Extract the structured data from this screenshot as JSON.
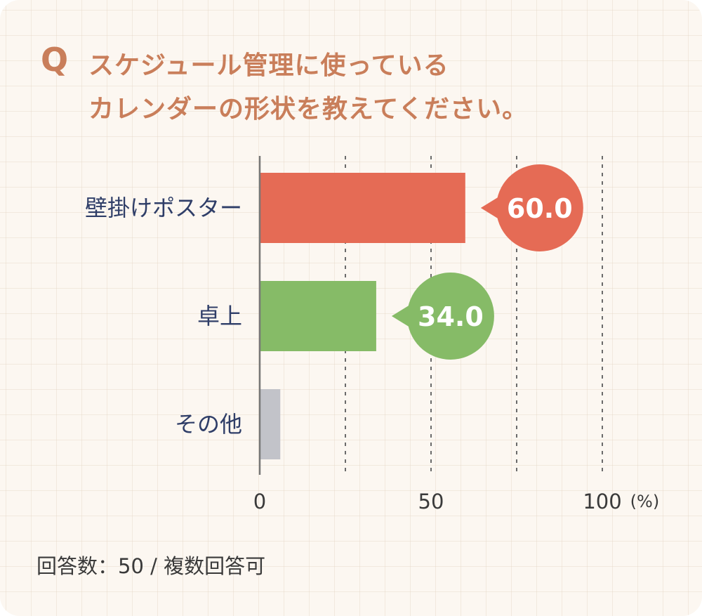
{
  "question": {
    "mark": "Q",
    "line1": "スケジュール管理に使っている",
    "line2": "カレンダーの形状を教えてください。"
  },
  "footnote": "回答数：50 / 複数回答可",
  "colors": {
    "accent": "#c97e5a",
    "background": "#fcf7f1",
    "bar_wall": "#e56b55",
    "bar_desk": "#86bb67",
    "bar_other": "#c2c3c9",
    "label_text": "#2f3e68"
  },
  "chart_data": {
    "type": "bar",
    "orientation": "horizontal",
    "title": "",
    "xlabel": "",
    "ylabel": "",
    "categories": [
      "壁掛けポスター",
      "卓上",
      "その他"
    ],
    "values": [
      60.0,
      34.0,
      6.0
    ],
    "value_labels": [
      "60.0",
      "34.0",
      ""
    ],
    "bar_colors": [
      "#e56b55",
      "#86bb67",
      "#c2c3c9"
    ],
    "xlim": [
      0,
      100
    ],
    "xticks": [
      0,
      50,
      100
    ],
    "xtick_labels": [
      "0",
      "50",
      "100"
    ],
    "unit": "(%)",
    "dashed_gridlines_at": [
      25,
      50,
      75,
      100
    ],
    "grid": true,
    "legend": "none"
  }
}
